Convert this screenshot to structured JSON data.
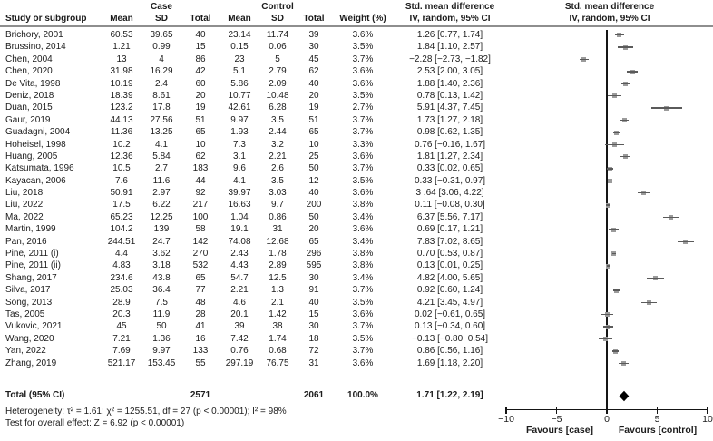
{
  "header": {
    "col_groups": {
      "case": "Case",
      "control": "Control"
    },
    "columns": {
      "study": "Study or subgroup",
      "mean": "Mean",
      "sd": "SD",
      "total": "Total",
      "weight": "Weight (%)",
      "smd_line1": "Std. mean difference",
      "smd_line2": "IV, random, 95% CI"
    }
  },
  "chart_data": {
    "type": "forest",
    "effect_measure": "Std. mean difference",
    "model": "IV, random, 95% CI",
    "x_axis": {
      "min": -10,
      "max": 10,
      "tick_values": [
        -10,
        -5,
        0,
        5,
        10
      ],
      "tick_labels": [
        "−10",
        "−5",
        "0",
        "5",
        "10"
      ]
    },
    "favours_left": "Favours [case]",
    "favours_right": "Favours [control]",
    "studies": [
      {
        "name": "Brichory, 2001",
        "case_mean": "60.53",
        "case_sd": "39.65",
        "case_total": "40",
        "ctrl_mean": "23.14",
        "ctrl_sd": "11.74",
        "ctrl_total": "39",
        "weight": "3.6%",
        "smd": "1.26 [0.77, 1.74]",
        "est": 1.26,
        "lo": 0.77,
        "hi": 1.74
      },
      {
        "name": "Brussino, 2014",
        "case_mean": "1.21",
        "case_sd": "0.99",
        "case_total": "15",
        "ctrl_mean": "0.15",
        "ctrl_sd": "0.06",
        "ctrl_total": "30",
        "weight": "3.5%",
        "smd": "1.84 [1.10, 2.57]",
        "est": 1.84,
        "lo": 1.1,
        "hi": 2.57
      },
      {
        "name": "Chen, 2004",
        "case_mean": "13",
        "case_sd": "4",
        "case_total": "86",
        "ctrl_mean": "23",
        "ctrl_sd": "5",
        "ctrl_total": "45",
        "weight": "3.7%",
        "smd": "−2.28 [−2.73, −1.82]",
        "est": -2.28,
        "lo": -2.73,
        "hi": -1.82
      },
      {
        "name": "Chen, 2020",
        "case_mean": "31.98",
        "case_sd": "16.29",
        "case_total": "42",
        "ctrl_mean": "5.1",
        "ctrl_sd": "2.79",
        "ctrl_total": "62",
        "weight": "3.6%",
        "smd": "2.53 [2.00, 3.05]",
        "est": 2.53,
        "lo": 2.0,
        "hi": 3.05
      },
      {
        "name": "De Vita, 1998",
        "case_mean": "10.19",
        "case_sd": "2.4",
        "case_total": "60",
        "ctrl_mean": "5.86",
        "ctrl_sd": "2.09",
        "ctrl_total": "40",
        "weight": "3.6%",
        "smd": "1.88 [1.40, 2.36]",
        "est": 1.88,
        "lo": 1.4,
        "hi": 2.36
      },
      {
        "name": "Deniz, 2018",
        "case_mean": "18.39",
        "case_sd": "8.61",
        "case_total": "20",
        "ctrl_mean": "10.77",
        "ctrl_sd": "10.48",
        "ctrl_total": "20",
        "weight": "3.5%",
        "smd": "0.78 [0.13, 1.42]",
        "est": 0.78,
        "lo": 0.13,
        "hi": 1.42
      },
      {
        "name": "Duan, 2015",
        "case_mean": "123.2",
        "case_sd": "17.8",
        "case_total": "19",
        "ctrl_mean": "42.61",
        "ctrl_sd": "6.28",
        "ctrl_total": "19",
        "weight": "2.7%",
        "smd": "5.91 [4.37, 7.45]",
        "est": 5.91,
        "lo": 4.37,
        "hi": 7.45
      },
      {
        "name": "Gaur, 2019",
        "case_mean": "44.13",
        "case_sd": "27.56",
        "case_total": "51",
        "ctrl_mean": "9.97",
        "ctrl_sd": "3.5",
        "ctrl_total": "51",
        "weight": "3.7%",
        "smd": "1.73 [1.27, 2.18]",
        "est": 1.73,
        "lo": 1.27,
        "hi": 2.18
      },
      {
        "name": "Guadagni, 2004",
        "case_mean": "11.36",
        "case_sd": "13.25",
        "case_total": "65",
        "ctrl_mean": "1.93",
        "ctrl_sd": "2.44",
        "ctrl_total": "65",
        "weight": "3.7%",
        "smd": "0.98 [0.62, 1.35]",
        "est": 0.98,
        "lo": 0.62,
        "hi": 1.35
      },
      {
        "name": "Hoheisel, 1998",
        "case_mean": "10.2",
        "case_sd": "4.1",
        "case_total": "10",
        "ctrl_mean": "7.3",
        "ctrl_sd": "3.2",
        "ctrl_total": "10",
        "weight": "3.3%",
        "smd": "0.76 [−0.16, 1.67]",
        "est": 0.76,
        "lo": -0.16,
        "hi": 1.67
      },
      {
        "name": "Huang, 2005",
        "case_mean": "12.36",
        "case_sd": "5.84",
        "case_total": "62",
        "ctrl_mean": "3.1",
        "ctrl_sd": "2.21",
        "ctrl_total": "25",
        "weight": "3.6%",
        "smd": "1.81 [1.27, 2.34]",
        "est": 1.81,
        "lo": 1.27,
        "hi": 2.34
      },
      {
        "name": "Katsumata, 1996",
        "case_mean": "10.5",
        "case_sd": "2.7",
        "case_total": "183",
        "ctrl_mean": "9.6",
        "ctrl_sd": "2.6",
        "ctrl_total": "50",
        "weight": "3.7%",
        "smd": "0.33 [0.02, 0.65]",
        "est": 0.33,
        "lo": 0.02,
        "hi": 0.65
      },
      {
        "name": "Kayacan, 2006",
        "case_mean": "7.6",
        "case_sd": "11.6",
        "case_total": "44",
        "ctrl_mean": "4.1",
        "ctrl_sd": "3.5",
        "ctrl_total": "12",
        "weight": "3.5%",
        "smd": "0.33 [−0.31, 0.97]",
        "est": 0.33,
        "lo": -0.31,
        "hi": 0.97
      },
      {
        "name": "Liu, 2018",
        "case_mean": "50.91",
        "case_sd": "2.97",
        "case_total": "92",
        "ctrl_mean": "39.97",
        "ctrl_sd": "3.03",
        "ctrl_total": "40",
        "weight": "3.6%",
        "smd": "3 .64 [3.06, 4.22]",
        "est": 3.64,
        "lo": 3.06,
        "hi": 4.22
      },
      {
        "name": "Liu, 2022",
        "case_mean": "17.5",
        "case_sd": "6.22",
        "case_total": "217",
        "ctrl_mean": "16.63",
        "ctrl_sd": "9.7",
        "ctrl_total": "200",
        "weight": "3.8%",
        "smd": "0.11 [−0.08, 0.30]",
        "est": 0.11,
        "lo": -0.08,
        "hi": 0.3
      },
      {
        "name": "Ma, 2022",
        "case_mean": "65.23",
        "case_sd": "12.25",
        "case_total": "100",
        "ctrl_mean": "1.04",
        "ctrl_sd": "0.86",
        "ctrl_total": "50",
        "weight": "3.4%",
        "smd": "6.37 [5.56, 7.17]",
        "est": 6.37,
        "lo": 5.56,
        "hi": 7.17
      },
      {
        "name": "Martin, 1999",
        "case_mean": "104.2",
        "case_sd": "139",
        "case_total": "58",
        "ctrl_mean": "19.1",
        "ctrl_sd": "31",
        "ctrl_total": "20",
        "weight": "3.6%",
        "smd": "0.69 [0.17, 1.21]",
        "est": 0.69,
        "lo": 0.17,
        "hi": 1.21
      },
      {
        "name": "Pan, 2016",
        "case_mean": "244.51",
        "case_sd": "24.7",
        "case_total": "142",
        "ctrl_mean": "74.08",
        "ctrl_sd": "12.68",
        "ctrl_total": "65",
        "weight": "3.4%",
        "smd": "7.83 [7.02, 8.65]",
        "est": 7.83,
        "lo": 7.02,
        "hi": 8.65
      },
      {
        "name": "Pine, 2011 (i)",
        "case_mean": "4.4",
        "case_sd": "3.62",
        "case_total": "270",
        "ctrl_mean": "2.43",
        "ctrl_sd": "1.78",
        "ctrl_total": "296",
        "weight": "3.8%",
        "smd": "0.70 [0.53, 0.87]",
        "est": 0.7,
        "lo": 0.53,
        "hi": 0.87
      },
      {
        "name": "Pine, 2011 (ii)",
        "case_mean": "4.83",
        "case_sd": "3.18",
        "case_total": "532",
        "ctrl_mean": "4.43",
        "ctrl_sd": "2.89",
        "ctrl_total": "595",
        "weight": "3.8%",
        "smd": "0.13 [0.01, 0.25]",
        "est": 0.13,
        "lo": 0.01,
        "hi": 0.25
      },
      {
        "name": "Shang, 2017",
        "case_mean": "234.6",
        "case_sd": "43.8",
        "case_total": "65",
        "ctrl_mean": "54.7",
        "ctrl_sd": "12.5",
        "ctrl_total": "30",
        "weight": "3.4%",
        "smd": "4.82 [4.00, 5.65]",
        "est": 4.82,
        "lo": 4.0,
        "hi": 5.65
      },
      {
        "name": "Silva, 2017",
        "case_mean": "25.03",
        "case_sd": "36.4",
        "case_total": "77",
        "ctrl_mean": "2.21",
        "ctrl_sd": "1.3",
        "ctrl_total": "91",
        "weight": "3.7%",
        "smd": "0.92 [0.60, 1.24]",
        "est": 0.92,
        "lo": 0.6,
        "hi": 1.24
      },
      {
        "name": "Song, 2013",
        "case_mean": "28.9",
        "case_sd": "7.5",
        "case_total": "48",
        "ctrl_mean": "4.6",
        "ctrl_sd": "2.1",
        "ctrl_total": "40",
        "weight": "3.5%",
        "smd": "4.21 [3.45, 4.97]",
        "est": 4.21,
        "lo": 3.45,
        "hi": 4.97
      },
      {
        "name": "Tas, 2005",
        "case_mean": "20.3",
        "case_sd": "11.9",
        "case_total": "28",
        "ctrl_mean": "20.1",
        "ctrl_sd": "1.42",
        "ctrl_total": "15",
        "weight": "3.6%",
        "smd": "0.02 [−0.61, 0.65]",
        "est": 0.02,
        "lo": -0.61,
        "hi": 0.65
      },
      {
        "name": "Vukovic, 2021",
        "case_mean": "45",
        "case_sd": "50",
        "case_total": "41",
        "ctrl_mean": "39",
        "ctrl_sd": "38",
        "ctrl_total": "30",
        "weight": "3.7%",
        "smd": "0.13 [−0.34, 0.60]",
        "est": 0.13,
        "lo": -0.34,
        "hi": 0.6
      },
      {
        "name": "Wang, 2020",
        "case_mean": "7.21",
        "case_sd": "1.36",
        "case_total": "16",
        "ctrl_mean": "7.42",
        "ctrl_sd": "1.74",
        "ctrl_total": "18",
        "weight": "3.5%",
        "smd": "−0.13 [−0.80, 0.54]",
        "est": -0.13,
        "lo": -0.8,
        "hi": 0.54
      },
      {
        "name": "Yan, 2022",
        "case_mean": "7.69",
        "case_sd": "9.97",
        "case_total": "133",
        "ctrl_mean": "0.76",
        "ctrl_sd": "0.68",
        "ctrl_total": "72",
        "weight": "3.7%",
        "smd": "0.86 [0.56, 1.16]",
        "est": 0.86,
        "lo": 0.56,
        "hi": 1.16
      },
      {
        "name": "Zhang, 2019",
        "case_mean": "521.17",
        "case_sd": "153.45",
        "case_total": "55",
        "ctrl_mean": "297.19",
        "ctrl_sd": "76.75",
        "ctrl_total": "31",
        "weight": "3.6%",
        "smd": "1.69 [1.18, 2.20]",
        "est": 1.69,
        "lo": 1.18,
        "hi": 2.2
      }
    ],
    "total": {
      "label": "Total (95% CI)",
      "case_total": "2571",
      "ctrl_total": "2061",
      "weight": "100.0%",
      "smd": "1.71 [1.22, 2.19]",
      "est": 1.71,
      "lo": 1.22,
      "hi": 2.19
    },
    "footnotes": [
      "Heterogeneity: τ² = 1.61; χ² = 1255.51, df = 27 (p < 0.00001); I² = 98%",
      "Test for overall effect: Z = 6.92 (p < 0.00001)"
    ]
  }
}
